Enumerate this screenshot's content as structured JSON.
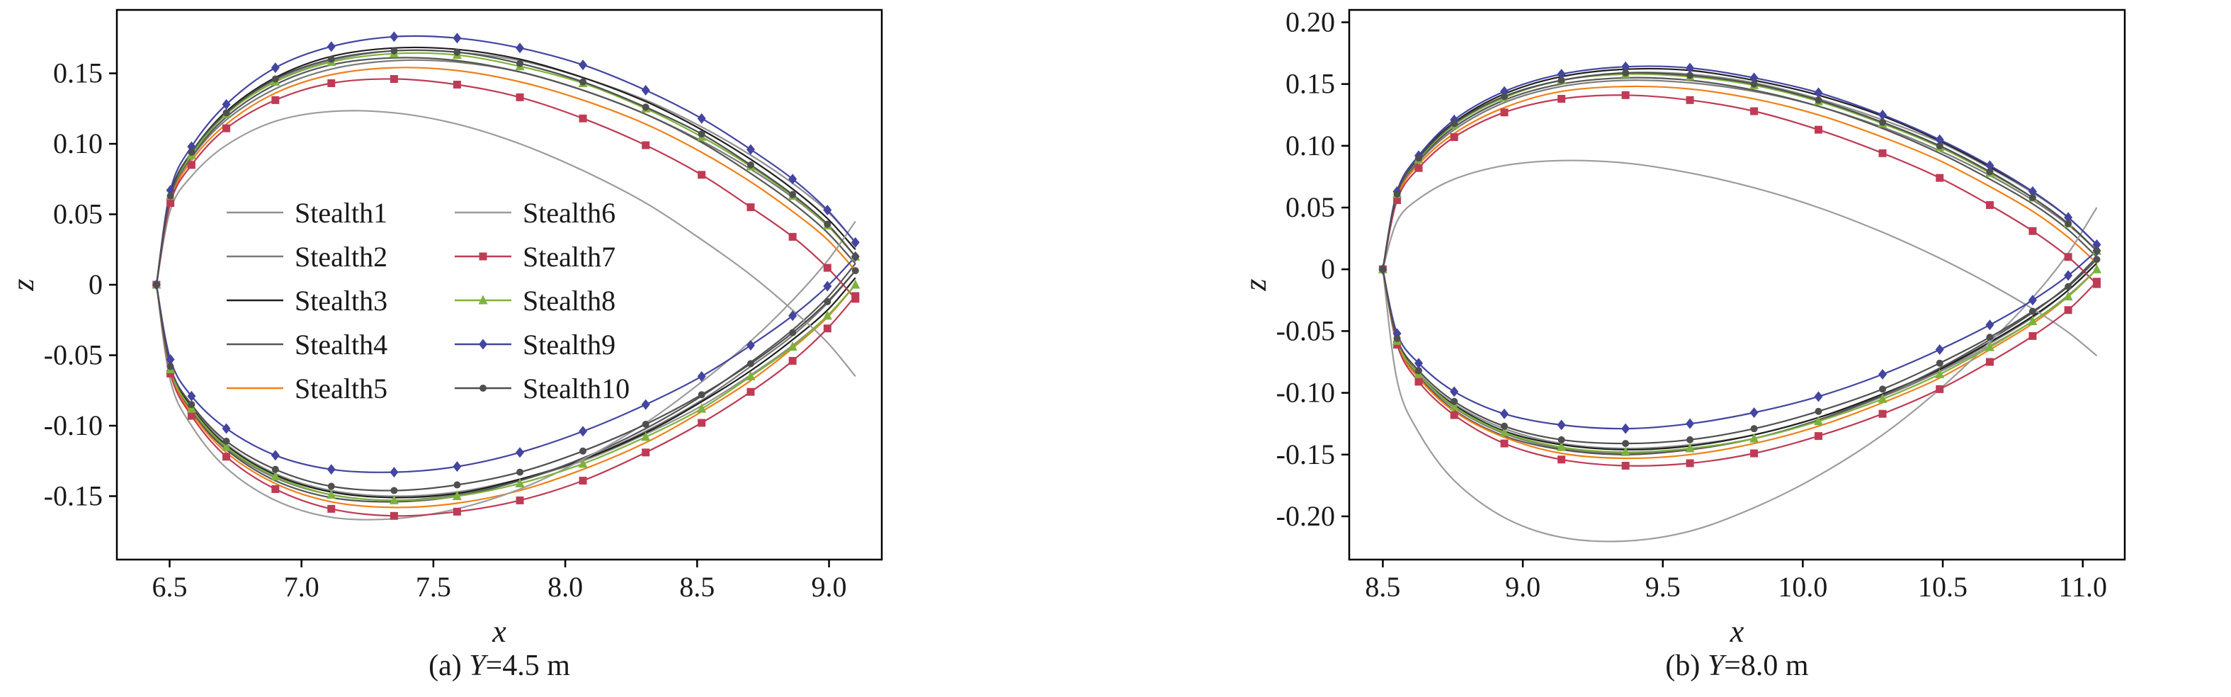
{
  "figure": {
    "background": "#ffffff",
    "axis_color": "#000000",
    "text_color": "#1a1a1a"
  },
  "chart_data": [
    {
      "type": "line",
      "caption_prefix": "(a) ",
      "caption_var": "Y",
      "caption_suffix": "=4.5 m",
      "xlabel": "x",
      "ylabel": "z",
      "xlim": [
        6.3,
        9.2
      ],
      "ylim": [
        -0.195,
        0.195
      ],
      "xticks": {
        "values": [
          6.5,
          7.0,
          7.5,
          8.0,
          8.5,
          9.0
        ],
        "labels": [
          "6.5",
          "7.0",
          "7.5",
          "8.0",
          "8.5",
          "9.0"
        ]
      },
      "yticks": {
        "values": [
          0.15,
          0.1,
          0.05,
          0,
          -0.05,
          -0.1,
          -0.15
        ],
        "labels": [
          "0.15",
          "0.10",
          "0.05",
          "0",
          "-0.05",
          "-0.10",
          "-0.15"
        ]
      },
      "legend": {
        "visible": true,
        "columns": [
          [
            0,
            1,
            2,
            3,
            4
          ],
          [
            5,
            6,
            7,
            8,
            9
          ]
        ]
      },
      "x": [
        6.45,
        6.503,
        6.583,
        6.715,
        6.901,
        7.113,
        7.351,
        7.59,
        7.828,
        8.067,
        8.305,
        8.517,
        8.703,
        8.862,
        8.994,
        9.1
      ],
      "series": [
        {
          "name": "Stealth1",
          "color": "#8f8f8f",
          "marker": "none",
          "upper": [
            0,
            0.063,
            0.093,
            0.121,
            0.145,
            0.159,
            0.166,
            0.165,
            0.159,
            0.147,
            0.131,
            0.112,
            0.092,
            0.072,
            0.052,
            0.03
          ],
          "lower": [
            0,
            -0.059,
            -0.086,
            -0.113,
            -0.134,
            -0.146,
            -0.15,
            -0.147,
            -0.138,
            -0.125,
            -0.106,
            -0.086,
            -0.064,
            -0.043,
            -0.022,
            0
          ]
        },
        {
          "name": "Stealth2",
          "color": "#7a7a7a",
          "marker": "none",
          "upper": [
            0,
            0.061,
            0.09,
            0.117,
            0.139,
            0.153,
            0.159,
            0.158,
            0.151,
            0.138,
            0.121,
            0.102,
            0.082,
            0.062,
            0.042,
            0.02
          ],
          "lower": [
            0,
            -0.06,
            -0.089,
            -0.116,
            -0.137,
            -0.149,
            -0.153,
            -0.149,
            -0.139,
            -0.124,
            -0.104,
            -0.082,
            -0.058,
            -0.036,
            -0.013,
            0.01
          ]
        },
        {
          "name": "Stealth3",
          "color": "#1f1f1f",
          "marker": "none",
          "upper": [
            0,
            0.064,
            0.094,
            0.123,
            0.147,
            0.162,
            0.168,
            0.167,
            0.16,
            0.147,
            0.13,
            0.11,
            0.089,
            0.068,
            0.047,
            0.025
          ],
          "lower": [
            0,
            -0.059,
            -0.087,
            -0.114,
            -0.135,
            -0.147,
            -0.151,
            -0.148,
            -0.138,
            -0.124,
            -0.105,
            -0.083,
            -0.061,
            -0.039,
            -0.018,
            0.005
          ]
        },
        {
          "name": "Stealth4",
          "color": "#565656",
          "marker": "none",
          "upper": [
            0,
            0.062,
            0.091,
            0.119,
            0.142,
            0.156,
            0.161,
            0.159,
            0.151,
            0.138,
            0.121,
            0.101,
            0.079,
            0.058,
            0.037,
            0.015
          ],
          "lower": [
            0,
            -0.061,
            -0.09,
            -0.117,
            -0.139,
            -0.151,
            -0.154,
            -0.15,
            -0.139,
            -0.123,
            -0.102,
            -0.079,
            -0.055,
            -0.032,
            -0.009,
            0.015
          ]
        },
        {
          "name": "Stealth5",
          "color": "#f08019",
          "marker": "none",
          "upper": [
            0,
            0.059,
            0.088,
            0.114,
            0.136,
            0.149,
            0.154,
            0.152,
            0.144,
            0.131,
            0.114,
            0.094,
            0.073,
            0.052,
            0.032,
            0.01
          ],
          "lower": [
            0,
            -0.062,
            -0.091,
            -0.119,
            -0.141,
            -0.154,
            -0.158,
            -0.155,
            -0.146,
            -0.131,
            -0.112,
            -0.09,
            -0.068,
            -0.045,
            -0.023,
            0
          ]
        },
        {
          "name": "Stealth6",
          "color": "#9c9c9c",
          "marker": "none",
          "upper": [
            0,
            0.053,
            0.077,
            0.099,
            0.116,
            0.123,
            0.122,
            0.114,
            0.1,
            0.081,
            0.058,
            0.032,
            0.007,
            -0.018,
            -0.041,
            -0.065
          ],
          "lower": [
            0,
            -0.068,
            -0.1,
            -0.13,
            -0.153,
            -0.165,
            -0.166,
            -0.159,
            -0.145,
            -0.124,
            -0.098,
            -0.069,
            -0.04,
            -0.011,
            0.017,
            0.045
          ]
        },
        {
          "name": "Stealth7",
          "color": "#bf3b55",
          "marker": "square",
          "upper": [
            0,
            0.058,
            0.085,
            0.111,
            0.131,
            0.143,
            0.146,
            0.142,
            0.133,
            0.118,
            0.099,
            0.078,
            0.055,
            0.034,
            0.012,
            -0.01
          ],
          "lower": [
            0,
            -0.063,
            -0.093,
            -0.122,
            -0.145,
            -0.159,
            -0.164,
            -0.161,
            -0.153,
            -0.139,
            -0.119,
            -0.098,
            -0.076,
            -0.054,
            -0.031,
            -0.008
          ]
        },
        {
          "name": "Stealth8",
          "color": "#7db23c",
          "marker": "triangle",
          "upper": [
            0,
            0.063,
            0.092,
            0.121,
            0.144,
            0.158,
            0.164,
            0.163,
            0.155,
            0.143,
            0.125,
            0.105,
            0.084,
            0.063,
            0.042,
            0.02
          ],
          "lower": [
            0,
            -0.06,
            -0.088,
            -0.115,
            -0.136,
            -0.149,
            -0.153,
            -0.15,
            -0.141,
            -0.127,
            -0.108,
            -0.088,
            -0.065,
            -0.044,
            -0.022,
            0
          ]
        },
        {
          "name": "Stealth9",
          "color": "#4345a0",
          "marker": "diamond",
          "upper": [
            0,
            0.067,
            0.098,
            0.128,
            0.154,
            0.169,
            0.176,
            0.175,
            0.168,
            0.156,
            0.138,
            0.118,
            0.096,
            0.075,
            0.053,
            0.03
          ],
          "lower": [
            0,
            -0.053,
            -0.079,
            -0.102,
            -0.121,
            -0.131,
            -0.133,
            -0.129,
            -0.119,
            -0.104,
            -0.085,
            -0.065,
            -0.043,
            -0.022,
            -0.001,
            0.02
          ]
        },
        {
          "name": "Stealth10",
          "color": "#4f4f4f",
          "marker": "circle",
          "upper": [
            0,
            0.063,
            0.094,
            0.122,
            0.146,
            0.16,
            0.166,
            0.165,
            0.157,
            0.144,
            0.126,
            0.107,
            0.085,
            0.064,
            0.043,
            0.02
          ],
          "lower": [
            0,
            -0.058,
            -0.085,
            -0.111,
            -0.131,
            -0.143,
            -0.146,
            -0.142,
            -0.133,
            -0.118,
            -0.099,
            -0.078,
            -0.056,
            -0.034,
            -0.012,
            0.01
          ]
        }
      ]
    },
    {
      "type": "line",
      "caption_prefix": "(b) ",
      "caption_var": "Y",
      "caption_suffix": "=8.0 m",
      "xlabel": "x",
      "ylabel": "z",
      "xlim": [
        8.38,
        11.15
      ],
      "ylim": [
        -0.235,
        0.21
      ],
      "xticks": {
        "values": [
          8.5,
          9.0,
          9.5,
          10.0,
          10.5,
          11.0
        ],
        "labels": [
          "8.5",
          "9.0",
          "9.5",
          "10.0",
          "10.5",
          "11.0"
        ]
      },
      "yticks": {
        "values": [
          0.2,
          0.15,
          0.1,
          0.05,
          0,
          -0.05,
          -0.1,
          -0.15,
          -0.2
        ],
        "labels": [
          "0.20",
          "0.15",
          "0.10",
          "0.05",
          "0",
          "-0.05",
          "-0.10",
          "-0.15",
          "-0.20"
        ]
      },
      "legend": {
        "visible": false,
        "columns": []
      },
      "x": [
        8.5,
        8.551,
        8.628,
        8.755,
        8.934,
        9.138,
        9.367,
        9.597,
        9.826,
        10.056,
        10.285,
        10.489,
        10.668,
        10.821,
        10.948,
        11.05
      ],
      "series": [
        {
          "name": "Stealth1",
          "color": "#8f8f8f",
          "marker": "none",
          "upper": [
            0,
            0.061,
            0.09,
            0.117,
            0.14,
            0.153,
            0.159,
            0.158,
            0.151,
            0.138,
            0.121,
            0.103,
            0.082,
            0.062,
            0.042,
            0.02
          ],
          "lower": [
            0,
            -0.057,
            -0.084,
            -0.109,
            -0.129,
            -0.141,
            -0.145,
            -0.142,
            -0.134,
            -0.12,
            -0.103,
            -0.083,
            -0.062,
            -0.042,
            -0.021,
            0
          ]
        },
        {
          "name": "Stealth2",
          "color": "#7a7a7a",
          "marker": "none",
          "upper": [
            0,
            0.059,
            0.087,
            0.113,
            0.135,
            0.148,
            0.153,
            0.151,
            0.144,
            0.132,
            0.115,
            0.096,
            0.076,
            0.056,
            0.036,
            0.015
          ],
          "lower": [
            0,
            -0.059,
            -0.086,
            -0.112,
            -0.133,
            -0.145,
            -0.149,
            -0.146,
            -0.137,
            -0.122,
            -0.103,
            -0.082,
            -0.06,
            -0.039,
            -0.017,
            0.005
          ]
        },
        {
          "name": "Stealth3",
          "color": "#1f1f1f",
          "marker": "none",
          "upper": [
            0,
            0.062,
            0.091,
            0.119,
            0.142,
            0.156,
            0.162,
            0.161,
            0.153,
            0.141,
            0.124,
            0.104,
            0.083,
            0.063,
            0.042,
            0.02
          ],
          "lower": [
            0,
            -0.057,
            -0.085,
            -0.11,
            -0.131,
            -0.142,
            -0.146,
            -0.143,
            -0.134,
            -0.12,
            -0.101,
            -0.081,
            -0.059,
            -0.038,
            -0.017,
            0.005
          ]
        },
        {
          "name": "Stealth4",
          "color": "#565656",
          "marker": "none",
          "upper": [
            0,
            0.06,
            0.088,
            0.115,
            0.137,
            0.15,
            0.155,
            0.153,
            0.145,
            0.132,
            0.114,
            0.094,
            0.073,
            0.053,
            0.032,
            0.01
          ],
          "lower": [
            0,
            -0.059,
            -0.087,
            -0.114,
            -0.135,
            -0.146,
            -0.15,
            -0.146,
            -0.137,
            -0.122,
            -0.102,
            -0.08,
            -0.057,
            -0.035,
            -0.013,
            0.01
          ]
        },
        {
          "name": "Stealth5",
          "color": "#f08019",
          "marker": "none",
          "upper": [
            0,
            0.058,
            0.085,
            0.11,
            0.131,
            0.144,
            0.148,
            0.146,
            0.138,
            0.125,
            0.107,
            0.088,
            0.067,
            0.047,
            0.026,
            0.005
          ],
          "lower": [
            0,
            -0.06,
            -0.088,
            -0.115,
            -0.136,
            -0.149,
            -0.153,
            -0.15,
            -0.141,
            -0.127,
            -0.108,
            -0.088,
            -0.065,
            -0.044,
            -0.022,
            0
          ]
        },
        {
          "name": "Stealth6",
          "color": "#9c9c9c",
          "marker": "none",
          "upper": [
            0,
            0.039,
            0.057,
            0.073,
            0.084,
            0.088,
            0.086,
            0.078,
            0.066,
            0.05,
            0.03,
            0.009,
            -0.012,
            -0.032,
            -0.051,
            -0.07
          ],
          "lower": [
            0,
            -0.09,
            -0.132,
            -0.171,
            -0.201,
            -0.217,
            -0.22,
            -0.212,
            -0.193,
            -0.167,
            -0.134,
            -0.097,
            -0.059,
            -0.023,
            0.013,
            0.05
          ]
        },
        {
          "name": "Stealth7",
          "color": "#bf3b55",
          "marker": "square",
          "upper": [
            0,
            0.056,
            0.082,
            0.107,
            0.127,
            0.138,
            0.141,
            0.137,
            0.128,
            0.113,
            0.094,
            0.074,
            0.052,
            0.031,
            0.01,
            -0.012
          ],
          "lower": [
            0,
            -0.061,
            -0.091,
            -0.118,
            -0.141,
            -0.154,
            -0.159,
            -0.157,
            -0.149,
            -0.135,
            -0.117,
            -0.097,
            -0.075,
            -0.054,
            -0.033,
            -0.01
          ]
        },
        {
          "name": "Stealth8",
          "color": "#7db23c",
          "marker": "triangle",
          "upper": [
            0,
            0.061,
            0.089,
            0.117,
            0.139,
            0.153,
            0.158,
            0.156,
            0.149,
            0.136,
            0.118,
            0.099,
            0.078,
            0.058,
            0.037,
            0.015
          ],
          "lower": [
            0,
            -0.058,
            -0.085,
            -0.111,
            -0.132,
            -0.144,
            -0.148,
            -0.145,
            -0.137,
            -0.123,
            -0.105,
            -0.085,
            -0.063,
            -0.042,
            -0.022,
            0
          ]
        },
        {
          "name": "Stealth9",
          "color": "#4345a0",
          "marker": "diamond",
          "upper": [
            0,
            0.063,
            0.092,
            0.121,
            0.144,
            0.158,
            0.164,
            0.163,
            0.155,
            0.143,
            0.125,
            0.105,
            0.084,
            0.063,
            0.042,
            0.02
          ],
          "lower": [
            0,
            -0.052,
            -0.076,
            -0.099,
            -0.117,
            -0.126,
            -0.129,
            -0.125,
            -0.116,
            -0.103,
            -0.085,
            -0.065,
            -0.045,
            -0.025,
            -0.005,
            0.015
          ]
        },
        {
          "name": "Stealth10",
          "color": "#4f4f4f",
          "marker": "circle",
          "upper": [
            0,
            0.061,
            0.09,
            0.118,
            0.14,
            0.153,
            0.159,
            0.157,
            0.15,
            0.137,
            0.119,
            0.1,
            0.079,
            0.058,
            0.037,
            0.015
          ],
          "lower": [
            0,
            -0.056,
            -0.082,
            -0.107,
            -0.127,
            -0.138,
            -0.141,
            -0.138,
            -0.129,
            -0.115,
            -0.097,
            -0.076,
            -0.055,
            -0.034,
            -0.014,
            0.008
          ]
        }
      ]
    }
  ]
}
